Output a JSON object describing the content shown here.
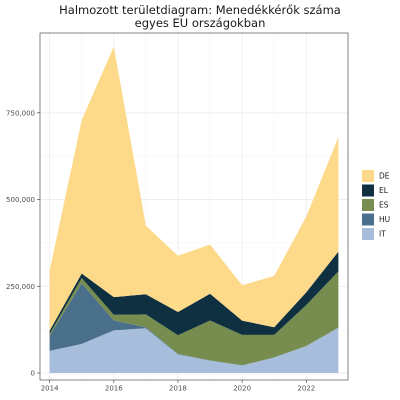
{
  "chart_data": {
    "type": "area",
    "stacked": true,
    "title_lines": [
      "Halmozott területdiagram: Menedékkérők száma",
      "egyes EU országokban"
    ],
    "xlabel": "",
    "ylabel": "",
    "x": [
      2014,
      2015,
      2016,
      2017,
      2018,
      2019,
      2020,
      2021,
      2022,
      2023
    ],
    "xlim": [
      2013.7,
      2023.3
    ],
    "ylim": [
      -20000,
      980000
    ],
    "x_ticks": [
      2014,
      2016,
      2018,
      2020,
      2022
    ],
    "x_tick_labels": [
      "2014",
      "2016",
      "2018",
      "2020",
      "2022"
    ],
    "y_ticks": [
      0,
      250000,
      500000,
      750000
    ],
    "y_tick_labels": [
      "0",
      "250,000",
      "500,000",
      "750,000"
    ],
    "grid": true,
    "legend_position": "right",
    "series": [
      {
        "name": "IT",
        "color": "#a6bddb",
        "values": [
          64000,
          84000,
          123000,
          129000,
          54000,
          36000,
          22000,
          45000,
          78000,
          131000
        ]
      },
      {
        "name": "HU",
        "color": "#4a6f8a",
        "values": [
          43000,
          175000,
          29000,
          3000,
          1000,
          500,
          100,
          40,
          40,
          30
        ]
      },
      {
        "name": "ES",
        "color": "#768d4f",
        "values": [
          6000,
          15000,
          16000,
          37000,
          54000,
          115000,
          88000,
          65000,
          118000,
          162000
        ]
      },
      {
        "name": "EL",
        "color": "#0e3040",
        "values": [
          9000,
          13000,
          51000,
          58000,
          67000,
          77000,
          41000,
          22000,
          37000,
          57000
        ]
      },
      {
        "name": "DE",
        "color": "#fdd98a",
        "values": [
          173000,
          442000,
          722000,
          198000,
          162000,
          142000,
          102000,
          148000,
          218000,
          330000
        ]
      }
    ],
    "legend_order": [
      "DE",
      "EL",
      "ES",
      "HU",
      "IT"
    ]
  }
}
